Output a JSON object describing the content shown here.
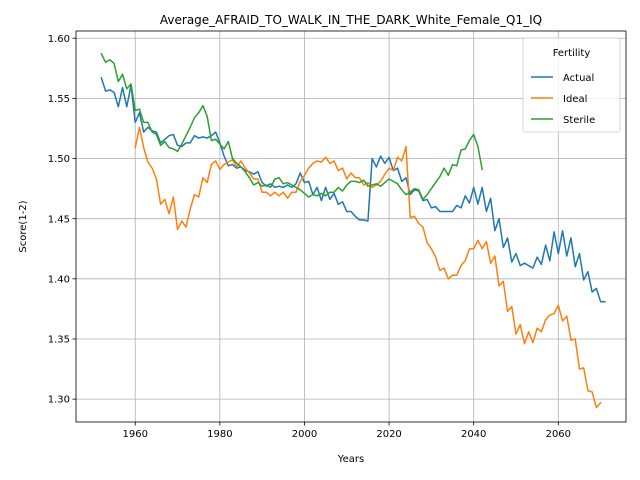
{
  "chart_data": {
    "type": "line",
    "title": "Average_AFRAID_TO_WALK_IN_THE_DARK_White_Female_Q1_IQ",
    "xlabel": "Years",
    "ylabel": "Score(1-2)",
    "xlim": [
      1946,
      2076
    ],
    "ylim": [
      1.281,
      1.606
    ],
    "xticks": [
      1960,
      1980,
      2000,
      2020,
      2040,
      2060
    ],
    "yticks": [
      1.3,
      1.35,
      1.4,
      1.45,
      1.5,
      1.55,
      1.6
    ],
    "ytick_labels": [
      "1.30",
      "1.35",
      "1.40",
      "1.45",
      "1.50",
      "1.55",
      "1.60"
    ],
    "grid": true,
    "legend": {
      "title": "Fertility",
      "position": "top-right"
    },
    "series": [
      {
        "name": "Actual",
        "color": "#1f77b4",
        "x_start": 1952,
        "values": [
          1.567,
          1.556,
          1.557,
          1.555,
          1.543,
          1.559,
          1.543,
          1.561,
          1.53,
          1.538,
          1.522,
          1.526,
          1.523,
          1.522,
          1.513,
          1.516,
          1.519,
          1.52,
          1.511,
          1.51,
          1.513,
          1.513,
          1.519,
          1.517,
          1.518,
          1.517,
          1.519,
          1.522,
          1.513,
          1.502,
          1.494,
          1.495,
          1.492,
          1.493,
          1.49,
          1.489,
          1.487,
          1.489,
          1.48,
          1.477,
          1.479,
          1.476,
          1.477,
          1.476,
          1.478,
          1.476,
          1.479,
          1.488,
          1.48,
          1.481,
          1.47,
          1.476,
          1.465,
          1.476,
          1.466,
          1.471,
          1.462,
          1.464,
          1.456,
          1.456,
          1.452,
          1.449,
          1.449,
          1.448,
          1.5,
          1.493,
          1.502,
          1.496,
          1.501,
          1.49,
          1.492,
          1.481,
          1.484,
          1.47,
          1.474,
          1.473,
          1.465,
          1.466,
          1.459,
          1.46,
          1.456,
          1.456,
          1.456,
          1.456,
          1.461,
          1.459,
          1.469,
          1.463,
          1.476,
          1.462,
          1.476,
          1.456,
          1.467,
          1.44,
          1.45,
          1.426,
          1.434,
          1.414,
          1.421,
          1.411,
          1.413,
          1.411,
          1.409,
          1.418,
          1.412,
          1.428,
          1.415,
          1.439,
          1.421,
          1.44,
          1.419,
          1.434,
          1.41,
          1.421,
          1.399,
          1.406,
          1.389,
          1.392,
          1.381,
          1.381
        ]
      },
      {
        "name": "Ideal",
        "color": "#ff7f0e",
        "x_start": 1960,
        "values": [
          1.509,
          1.526,
          1.509,
          1.497,
          1.492,
          1.483,
          1.462,
          1.466,
          1.454,
          1.468,
          1.441,
          1.448,
          1.443,
          1.458,
          1.47,
          1.468,
          1.484,
          1.48,
          1.495,
          1.498,
          1.491,
          1.495,
          1.497,
          1.499,
          1.493,
          1.498,
          1.492,
          1.488,
          1.483,
          1.483,
          1.472,
          1.472,
          1.469,
          1.472,
          1.469,
          1.472,
          1.467,
          1.472,
          1.472,
          1.481,
          1.486,
          1.492,
          1.496,
          1.498,
          1.497,
          1.501,
          1.496,
          1.498,
          1.49,
          1.492,
          1.483,
          1.488,
          1.484,
          1.484,
          1.478,
          1.48,
          1.476,
          1.478,
          1.481,
          1.487,
          1.492,
          1.49,
          1.501,
          1.498,
          1.51,
          1.451,
          1.452,
          1.446,
          1.443,
          1.43,
          1.425,
          1.418,
          1.407,
          1.409,
          1.4,
          1.403,
          1.403,
          1.411,
          1.415,
          1.425,
          1.425,
          1.432,
          1.425,
          1.431,
          1.413,
          1.419,
          1.394,
          1.398,
          1.373,
          1.377,
          1.354,
          1.362,
          1.346,
          1.356,
          1.347,
          1.359,
          1.356,
          1.366,
          1.37,
          1.371,
          1.378,
          1.365,
          1.369,
          1.349,
          1.35,
          1.325,
          1.326,
          1.307,
          1.306,
          1.293,
          1.297
        ]
      },
      {
        "name": "Sterile",
        "color": "#2ca02c",
        "x_start": 1952,
        "values": [
          1.587,
          1.58,
          1.582,
          1.579,
          1.564,
          1.57,
          1.558,
          1.562,
          1.54,
          1.541,
          1.53,
          1.53,
          1.522,
          1.52,
          1.511,
          1.514,
          1.509,
          1.508,
          1.506,
          1.512,
          1.519,
          1.526,
          1.534,
          1.538,
          1.544,
          1.535,
          1.515,
          1.516,
          1.512,
          1.508,
          1.514,
          1.5,
          1.496,
          1.493,
          1.489,
          1.484,
          1.478,
          1.48,
          1.477,
          1.478,
          1.476,
          1.483,
          1.484,
          1.479,
          1.48,
          1.478,
          1.476,
          1.474,
          1.471,
          1.468,
          1.47,
          1.469,
          1.471,
          1.469,
          1.472,
          1.472,
          1.476,
          1.473,
          1.478,
          1.481,
          1.481,
          1.48,
          1.482,
          1.477,
          1.478,
          1.479,
          1.477,
          1.48,
          1.483,
          1.481,
          1.479,
          1.474,
          1.47,
          1.472,
          1.475,
          1.474,
          1.466,
          1.47,
          1.475,
          1.48,
          1.485,
          1.492,
          1.486,
          1.495,
          1.494,
          1.507,
          1.508,
          1.515,
          1.52,
          1.51,
          1.491
        ]
      }
    ]
  }
}
